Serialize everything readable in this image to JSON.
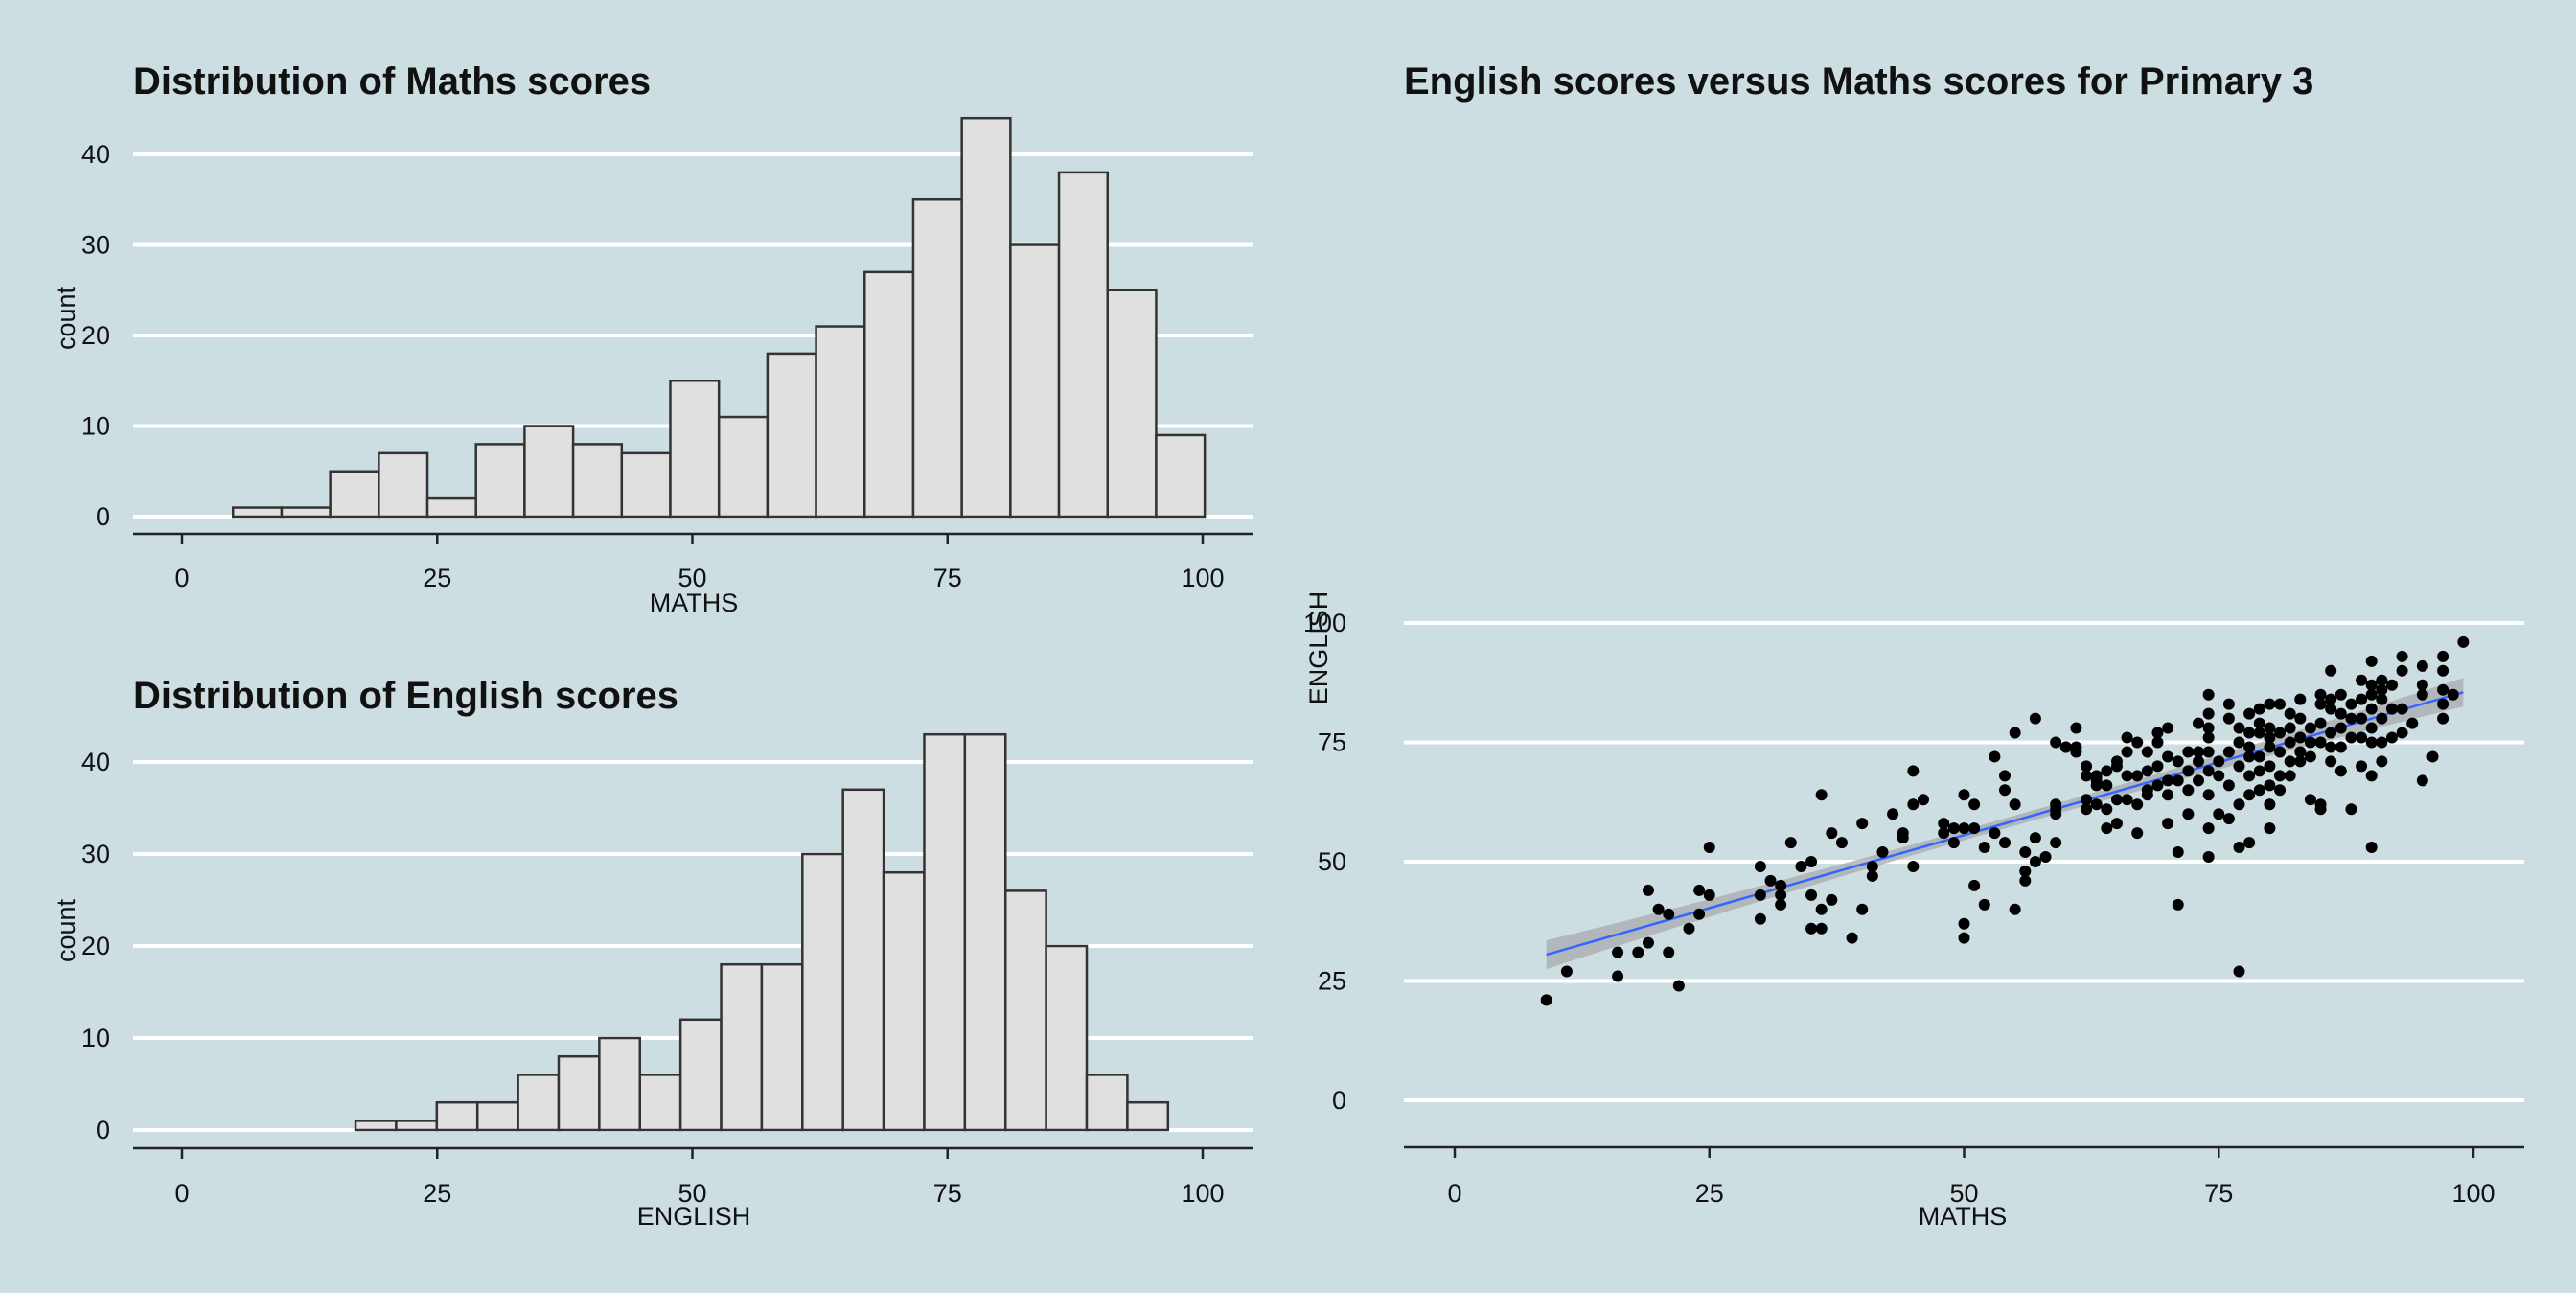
{
  "background": "#CDDEE3",
  "colors": {
    "bar_fill": "#E0E0E0",
    "bar_stroke": "#333333",
    "grid": "#FFFFFF",
    "axis": "#222222",
    "point": "#000000",
    "fit_line": "#3366FF",
    "confidence_band": "#A8AAAE"
  },
  "chart_data": [
    {
      "type": "bar",
      "title": "Distribution of Maths scores",
      "xlabel": "MATHS",
      "ylabel": "count",
      "bin_width": 4.76,
      "bin_start": 5.0,
      "values": [
        1,
        1,
        5,
        7,
        2,
        8,
        10,
        8,
        7,
        15,
        11,
        18,
        21,
        27,
        35,
        44,
        30,
        38,
        25,
        9
      ],
      "xlim": [
        -5,
        105
      ],
      "ylim": [
        -2,
        44
      ],
      "xticks": [
        0,
        25,
        50,
        75,
        100
      ],
      "yticks": [
        0,
        10,
        20,
        30,
        40
      ],
      "grid": "horizontal"
    },
    {
      "type": "bar",
      "title": "Distribution of English scores",
      "xlabel": "ENGLISH",
      "ylabel": "count",
      "bin_width": 3.98,
      "bin_start": 17.0,
      "values": [
        1,
        1,
        3,
        3,
        6,
        8,
        10,
        6,
        12,
        18,
        18,
        30,
        37,
        28,
        43,
        43,
        26,
        20,
        6,
        3
      ],
      "xlim": [
        -5,
        105
      ],
      "ylim": [
        -2,
        43
      ],
      "xticks": [
        0,
        25,
        50,
        75,
        100
      ],
      "yticks": [
        0,
        10,
        20,
        30,
        40
      ],
      "grid": "horizontal"
    },
    {
      "type": "scatter",
      "title": "English scores versus Maths scores for Primary 3",
      "xlabel": "MATHS",
      "ylabel": "ENGLISH",
      "xlim": [
        -5,
        105
      ],
      "ylim": [
        -5,
        100
      ],
      "xticks": [
        0,
        25,
        50,
        75,
        100
      ],
      "yticks": [
        0,
        25,
        50,
        75,
        100
      ],
      "grid": "horizontal",
      "fit": {
        "method": "linear",
        "x_from": 9,
        "x_to": 99,
        "y_from": 30.5,
        "y_to": 85.5,
        "se_halfwidth": 3
      },
      "points": [
        [
          9,
          21
        ],
        [
          11,
          27
        ],
        [
          16,
          26
        ],
        [
          16,
          31
        ],
        [
          18,
          31
        ],
        [
          19,
          33
        ],
        [
          19,
          44
        ],
        [
          20,
          40
        ],
        [
          21,
          39
        ],
        [
          21,
          31
        ],
        [
          22,
          24
        ],
        [
          23,
          36
        ],
        [
          24,
          39
        ],
        [
          24,
          44
        ],
        [
          25,
          43
        ],
        [
          25,
          53
        ],
        [
          30,
          49
        ],
        [
          30,
          38
        ],
        [
          30,
          43
        ],
        [
          31,
          46
        ],
        [
          32,
          41
        ],
        [
          32,
          43
        ],
        [
          32,
          45
        ],
        [
          33,
          54
        ],
        [
          34,
          49
        ],
        [
          35,
          50
        ],
        [
          35,
          43
        ],
        [
          35,
          36
        ],
        [
          36,
          40
        ],
        [
          36,
          36
        ],
        [
          36,
          64
        ],
        [
          37,
          56
        ],
        [
          37,
          42
        ],
        [
          38,
          54
        ],
        [
          39,
          34
        ],
        [
          40,
          40
        ],
        [
          40,
          58
        ],
        [
          41,
          49
        ],
        [
          41,
          47
        ],
        [
          42,
          52
        ],
        [
          43,
          60
        ],
        [
          44,
          56
        ],
        [
          44,
          55
        ],
        [
          45,
          49
        ],
        [
          45,
          69
        ],
        [
          45,
          62
        ],
        [
          46,
          63
        ],
        [
          48,
          58
        ],
        [
          48,
          56
        ],
        [
          49,
          57
        ],
        [
          49,
          54
        ],
        [
          50,
          34
        ],
        [
          50,
          37
        ],
        [
          50,
          64
        ],
        [
          50,
          57
        ],
        [
          51,
          62
        ],
        [
          51,
          57
        ],
        [
          51,
          45
        ],
        [
          52,
          53
        ],
        [
          52,
          41
        ],
        [
          53,
          72
        ],
        [
          53,
          56
        ],
        [
          54,
          68
        ],
        [
          54,
          65
        ],
        [
          54,
          54
        ],
        [
          55,
          40
        ],
        [
          55,
          77
        ],
        [
          55,
          62
        ],
        [
          56,
          46
        ],
        [
          56,
          52
        ],
        [
          56,
          48
        ],
        [
          57,
          80
        ],
        [
          57,
          55
        ],
        [
          57,
          50
        ],
        [
          58,
          51
        ],
        [
          59,
          75
        ],
        [
          59,
          54
        ],
        [
          59,
          60
        ],
        [
          59,
          61
        ],
        [
          59,
          62
        ],
        [
          60,
          74
        ],
        [
          60,
          74
        ],
        [
          61,
          78
        ],
        [
          61,
          73
        ],
        [
          61,
          74
        ],
        [
          62,
          61
        ],
        [
          62,
          63
        ],
        [
          62,
          68
        ],
        [
          62,
          70
        ],
        [
          63,
          68
        ],
        [
          63,
          67
        ],
        [
          63,
          66
        ],
        [
          63,
          62
        ],
        [
          64,
          69
        ],
        [
          64,
          66
        ],
        [
          64,
          57
        ],
        [
          64,
          61
        ],
        [
          65,
          58
        ],
        [
          65,
          63
        ],
        [
          65,
          70
        ],
        [
          65,
          71
        ],
        [
          66,
          63
        ],
        [
          66,
          76
        ],
        [
          66,
          73
        ],
        [
          66,
          68
        ],
        [
          67,
          75
        ],
        [
          67,
          68
        ],
        [
          67,
          62
        ],
        [
          67,
          56
        ],
        [
          68,
          73
        ],
        [
          68,
          69
        ],
        [
          68,
          65
        ],
        [
          68,
          64
        ],
        [
          69,
          77
        ],
        [
          69,
          75
        ],
        [
          69,
          70
        ],
        [
          69,
          66
        ],
        [
          70,
          78
        ],
        [
          70,
          72
        ],
        [
          70,
          67
        ],
        [
          70,
          64
        ],
        [
          70,
          58
        ],
        [
          71,
          71
        ],
        [
          71,
          67
        ],
        [
          71,
          41
        ],
        [
          71,
          52
        ],
        [
          72,
          73
        ],
        [
          72,
          69
        ],
        [
          72,
          65
        ],
        [
          72,
          60
        ],
        [
          73,
          73
        ],
        [
          73,
          79
        ],
        [
          73,
          71
        ],
        [
          73,
          67
        ],
        [
          74,
          85
        ],
        [
          74,
          81
        ],
        [
          74,
          78
        ],
        [
          74,
          76
        ],
        [
          74,
          73
        ],
        [
          74,
          69
        ],
        [
          74,
          64
        ],
        [
          74,
          57
        ],
        [
          74,
          51
        ],
        [
          75,
          71
        ],
        [
          75,
          68
        ],
        [
          75,
          60
        ],
        [
          76,
          83
        ],
        [
          76,
          80
        ],
        [
          76,
          73
        ],
        [
          76,
          66
        ],
        [
          76,
          59
        ],
        [
          77,
          27
        ],
        [
          77,
          78
        ],
        [
          77,
          75
        ],
        [
          77,
          70
        ],
        [
          77,
          62
        ],
        [
          77,
          53
        ],
        [
          78,
          81
        ],
        [
          78,
          77
        ],
        [
          78,
          74
        ],
        [
          78,
          72
        ],
        [
          78,
          68
        ],
        [
          78,
          64
        ],
        [
          78,
          54
        ],
        [
          79,
          82
        ],
        [
          79,
          79
        ],
        [
          79,
          77
        ],
        [
          79,
          72
        ],
        [
          79,
          69
        ],
        [
          79,
          65
        ],
        [
          80,
          83
        ],
        [
          80,
          78
        ],
        [
          80,
          76
        ],
        [
          80,
          74
        ],
        [
          80,
          70
        ],
        [
          80,
          66
        ],
        [
          80,
          62
        ],
        [
          80,
          57
        ],
        [
          81,
          83
        ],
        [
          81,
          77
        ],
        [
          81,
          73
        ],
        [
          81,
          68
        ],
        [
          81,
          65
        ],
        [
          82,
          81
        ],
        [
          82,
          78
        ],
        [
          82,
          75
        ],
        [
          82,
          71
        ],
        [
          82,
          68
        ],
        [
          83,
          84
        ],
        [
          83,
          80
        ],
        [
          83,
          76
        ],
        [
          83,
          73
        ],
        [
          83,
          71
        ],
        [
          84,
          78
        ],
        [
          84,
          75
        ],
        [
          84,
          72
        ],
        [
          84,
          63
        ],
        [
          85,
          85
        ],
        [
          85,
          83
        ],
        [
          85,
          79
        ],
        [
          85,
          75
        ],
        [
          85,
          62
        ],
        [
          85,
          61
        ],
        [
          86,
          90
        ],
        [
          86,
          84
        ],
        [
          86,
          82
        ],
        [
          86,
          77
        ],
        [
          86,
          74
        ],
        [
          86,
          71
        ],
        [
          87,
          85
        ],
        [
          87,
          81
        ],
        [
          87,
          78
        ],
        [
          87,
          74
        ],
        [
          87,
          69
        ],
        [
          88,
          83
        ],
        [
          88,
          80
        ],
        [
          88,
          76
        ],
        [
          88,
          61
        ],
        [
          89,
          88
        ],
        [
          89,
          84
        ],
        [
          89,
          80
        ],
        [
          89,
          76
        ],
        [
          89,
          70
        ],
        [
          90,
          92
        ],
        [
          90,
          87
        ],
        [
          90,
          85
        ],
        [
          90,
          82
        ],
        [
          90,
          78
        ],
        [
          90,
          75
        ],
        [
          90,
          68
        ],
        [
          90,
          53
        ],
        [
          91,
          88
        ],
        [
          91,
          86
        ],
        [
          91,
          84
        ],
        [
          91,
          80
        ],
        [
          91,
          75
        ],
        [
          91,
          71
        ],
        [
          92,
          87
        ],
        [
          92,
          82
        ],
        [
          92,
          76
        ],
        [
          93,
          93
        ],
        [
          93,
          90
        ],
        [
          93,
          82
        ],
        [
          93,
          77
        ],
        [
          94,
          79
        ],
        [
          95,
          91
        ],
        [
          95,
          87
        ],
        [
          95,
          85
        ],
        [
          95,
          67
        ],
        [
          96,
          72
        ],
        [
          97,
          93
        ],
        [
          97,
          90
        ],
        [
          97,
          86
        ],
        [
          97,
          83
        ],
        [
          97,
          80
        ],
        [
          98,
          85
        ],
        [
          99,
          96
        ]
      ]
    }
  ]
}
